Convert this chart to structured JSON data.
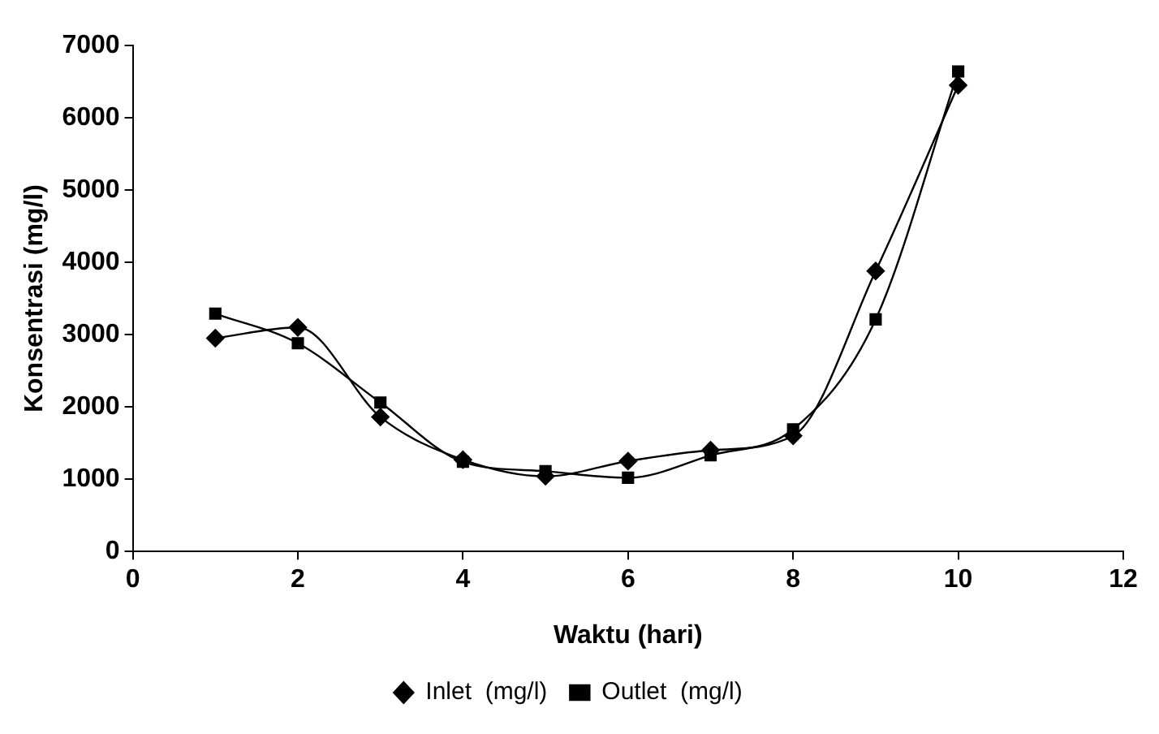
{
  "chart_data": {
    "type": "line",
    "xlabel": "Waktu (hari)",
    "ylabel": "Konsentrasi (mg/l)",
    "x": [
      1,
      2,
      3,
      4,
      5,
      6,
      7,
      8,
      9,
      10
    ],
    "series": [
      {
        "name": "Inlet  (mg/l)",
        "color": "#000000",
        "marker": "diamond",
        "values": [
          2950,
          3100,
          1860,
          1270,
          1040,
          1250,
          1400,
          1600,
          3880,
          6450
        ]
      },
      {
        "name": "Outlet  (mg/l)",
        "color": "#000000",
        "marker": "square",
        "values": [
          3290,
          2880,
          2060,
          1240,
          1110,
          1020,
          1330,
          1690,
          3210,
          6640
        ]
      }
    ],
    "xlim": [
      0,
      12
    ],
    "xticks": [
      0,
      2,
      4,
      6,
      8,
      10,
      12
    ],
    "ylim": [
      0,
      7000
    ],
    "yticks": [
      0,
      1000,
      2000,
      3000,
      4000,
      5000,
      6000,
      7000
    ],
    "grid": false,
    "legend": "bottom",
    "line_style": "solid"
  }
}
